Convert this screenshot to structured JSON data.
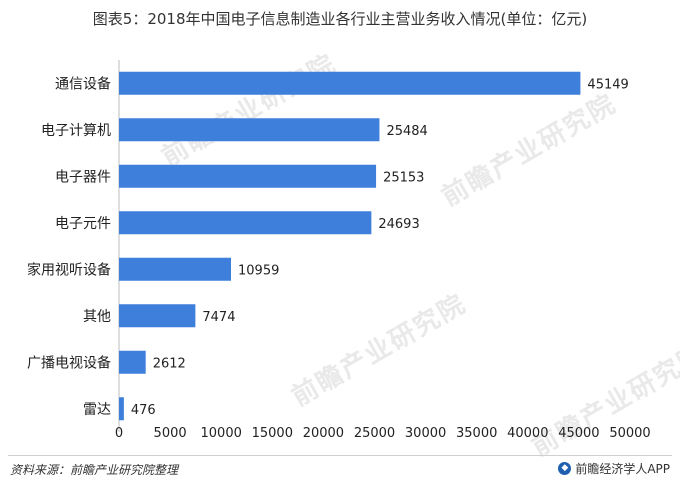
{
  "header": {
    "title": "图表5：2018年中国电子信息制造业各行业主营业务收入情况(单位：亿元)"
  },
  "chart_data": {
    "type": "bar",
    "orientation": "horizontal",
    "categories": [
      "通信设备",
      "电子计算机",
      "电子器件",
      "电子元件",
      "家用视听设备",
      "其他",
      "广播电视设备",
      "雷达"
    ],
    "values": [
      45149,
      25484,
      25153,
      24693,
      10959,
      7474,
      2612,
      476
    ],
    "xlim": [
      0,
      50000
    ],
    "xticks": [
      "0",
      "5000",
      "10000",
      "15000",
      "20000",
      "25000",
      "30000",
      "35000",
      "40000",
      "45000",
      "50000"
    ],
    "bar_color": "#3f7fdc",
    "grid": false
  },
  "footer": {
    "source": "资料来源：前瞻产业研究院整理",
    "brand": "前瞻经济学人APP"
  },
  "watermark": {
    "text": "前瞻产业研究院"
  }
}
